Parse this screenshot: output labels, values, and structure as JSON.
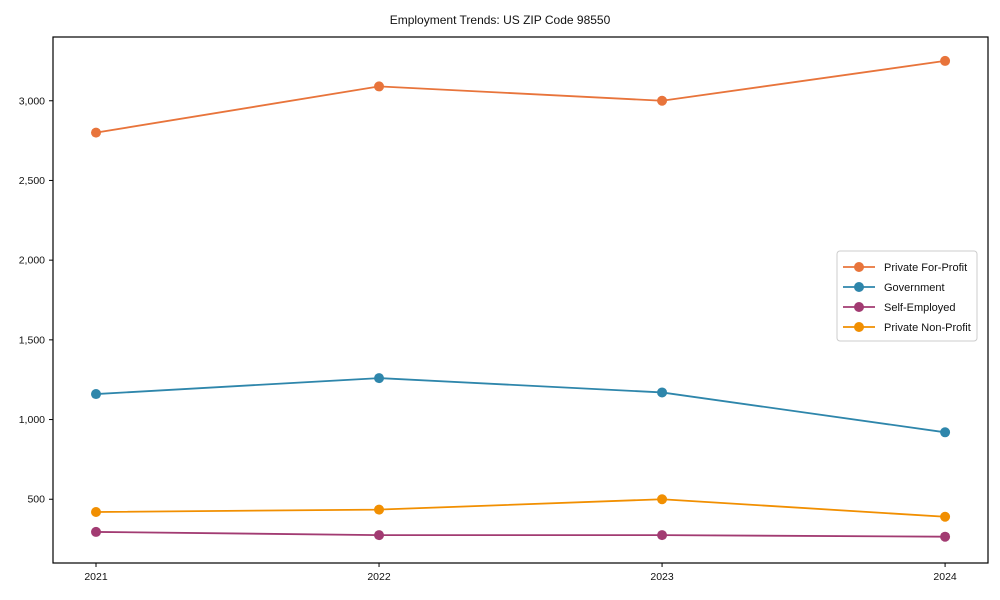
{
  "title": "Employment Trends: US ZIP Code 98550",
  "chart_data": {
    "type": "line",
    "title": "Employment Trends: US ZIP Code 98550",
    "x": [
      2021,
      2022,
      2023,
      2024
    ],
    "xtick_labels": [
      "2021",
      "2022",
      "2023",
      "2024"
    ],
    "series": [
      {
        "name": "Private For-Profit",
        "color": "#E8743B",
        "values": [
          2800,
          3090,
          3000,
          3250
        ]
      },
      {
        "name": "Government",
        "color": "#2E86AB",
        "values": [
          1160,
          1260,
          1170,
          920
        ]
      },
      {
        "name": "Self-Employed",
        "color": "#A23B72",
        "values": [
          295,
          275,
          275,
          265
        ]
      },
      {
        "name": "Private Non-Profit",
        "color": "#F18F01",
        "values": [
          420,
          435,
          500,
          390
        ]
      }
    ],
    "yticks": [
      500,
      1000,
      1500,
      2000,
      2500,
      3000
    ],
    "ytick_labels": [
      "500",
      "1,000",
      "1,500",
      "2,000",
      "2,500",
      "3,000"
    ],
    "ylim": [
      100,
      3400
    ],
    "xlabel": "",
    "ylabel": "",
    "grid": false,
    "legend_position": "center right",
    "marker": "circle",
    "line_width": 1.8,
    "marker_radius": 5,
    "axes_color": "#000000",
    "legend_border_color": "#cccccc",
    "background": "#ffffff"
  }
}
